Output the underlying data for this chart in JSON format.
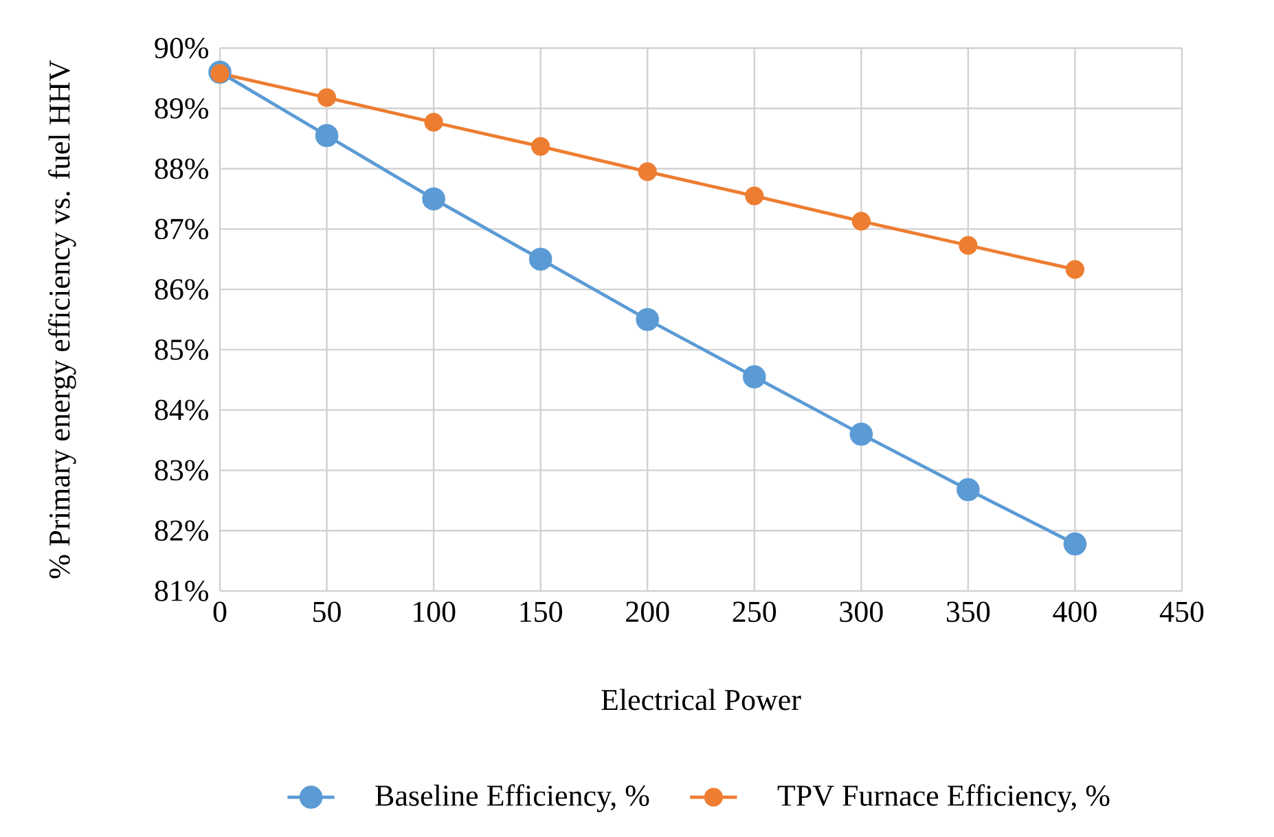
{
  "chart_data": {
    "type": "line",
    "xlabel": "Electrical Power",
    "ylabel": "% Primary energy efficiency vs. fuel HHV",
    "x": [
      0,
      50,
      100,
      150,
      200,
      250,
      300,
      350,
      400
    ],
    "series": [
      {
        "name": "Baseline Efficiency, %",
        "color": "#5b9bd5",
        "values": [
          89.6,
          88.55,
          87.5,
          86.5,
          85.5,
          84.55,
          83.6,
          82.68,
          81.78
        ]
      },
      {
        "name": "TPV Furnace Efficiency, %",
        "color": "#ed7d31",
        "values": [
          89.58,
          89.18,
          88.77,
          88.37,
          87.95,
          87.55,
          87.13,
          86.73,
          86.33
        ]
      }
    ],
    "xlim": [
      0,
      450
    ],
    "xticks": [
      0,
      50,
      100,
      150,
      200,
      250,
      300,
      350,
      400,
      450
    ],
    "ylim": [
      81,
      90
    ],
    "yticks": [
      {
        "value": 81,
        "label": "81%"
      },
      {
        "value": 82,
        "label": "82%"
      },
      {
        "value": 83,
        "label": "83%"
      },
      {
        "value": 84,
        "label": "84%"
      },
      {
        "value": 85,
        "label": "85%"
      },
      {
        "value": 86,
        "label": "86%"
      },
      {
        "value": 87,
        "label": "87%"
      },
      {
        "value": 88,
        "label": "88%"
      },
      {
        "value": 89,
        "label": "89%"
      },
      {
        "value": 90,
        "label": "90%"
      }
    ],
    "grid": true,
    "legend": "bottom",
    "marker": "circle",
    "line_style": "solid"
  }
}
